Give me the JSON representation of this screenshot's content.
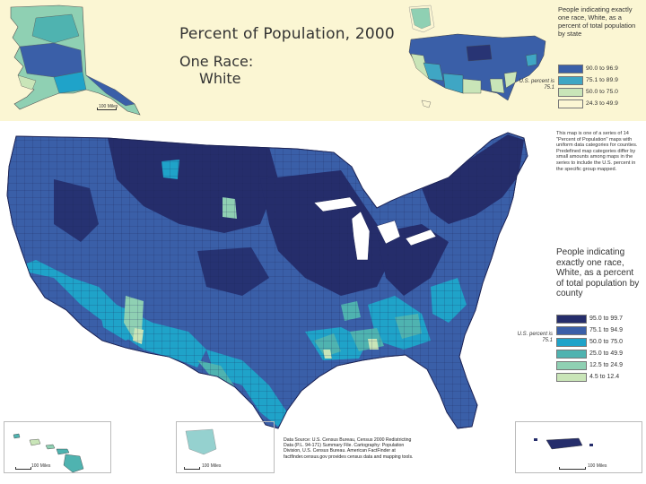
{
  "title": "Percent of Population, 2000",
  "subtitle_line1": "One Race:",
  "subtitle_line2": "White",
  "state_legend": {
    "title": "People indicating exactly one race, White, as a percent of total population by state",
    "items": [
      {
        "label": "90.0 to 96.9",
        "color": "#3a5fa8"
      },
      {
        "label": "75.1 to 89.9",
        "color": "#3fa6c4"
      },
      {
        "label": "50.0 to 75.0",
        "color": "#c9e5b8"
      },
      {
        "label": "24.3 to 49.9",
        "color": "#fbf6d3"
      }
    ],
    "us_percent": "U.S. percent is 75.1"
  },
  "series_note": "This map is one of a series of 14 \"Percent of Population\" maps with uniform data categories for counties. Predefined map categories differ by small amounts among maps in the series to include the U.S. percent in the specific group mapped.",
  "county_legend": {
    "title": "People indicating exactly one race, White, as a percent of total population by county",
    "items": [
      {
        "label": "95.0 to 99.7",
        "color": "#252d6b"
      },
      {
        "label": "75.1 to 94.9",
        "color": "#3a5fa8"
      },
      {
        "label": "50.0 to 75.0",
        "color": "#1fa3c9"
      },
      {
        "label": "25.0 to 49.9",
        "color": "#4fb3b0"
      },
      {
        "label": "12.5 to 24.9",
        "color": "#8fd0b3"
      },
      {
        "label": "4.5 to 12.4",
        "color": "#c9e5b8"
      }
    ],
    "us_percent": "U.S. percent is 75.1"
  },
  "source": "Data Source: U.S. Census Bureau, Census 2000 Redistricting Data (P.L. 94-171) Summary File. Cartography: Population Division, U.S. Census Bureau. American FactFinder at factfinder.census.gov provides census data and mapping tools.",
  "scale_alaska": "100 Miles",
  "scale_hawaii": "100 Miles",
  "scale_hawaii2": "100 Miles",
  "scale_pr": "100 Miles"
}
